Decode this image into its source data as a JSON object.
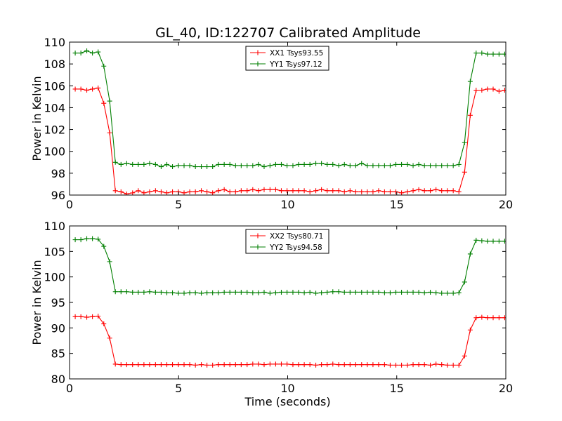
{
  "title": "GL_40, ID:122707 Calibrated Amplitude",
  "chart_data": [
    {
      "type": "line",
      "ylabel": "Power in Kelvin",
      "xlabel": "",
      "xlim": [
        0,
        20
      ],
      "ylim": [
        96,
        110
      ],
      "xticks": [
        0,
        5,
        10,
        15,
        20
      ],
      "yticks": [
        96,
        98,
        100,
        102,
        104,
        106,
        108,
        110
      ],
      "legend_position": "top-center",
      "x": [
        0.26,
        0.52,
        0.79,
        1.05,
        1.31,
        1.57,
        1.84,
        2.1,
        2.36,
        2.62,
        2.89,
        3.15,
        3.41,
        3.67,
        3.94,
        4.2,
        4.46,
        4.72,
        4.99,
        5.25,
        5.51,
        5.77,
        6.04,
        6.3,
        6.56,
        6.82,
        7.09,
        7.35,
        7.61,
        7.87,
        8.14,
        8.4,
        8.66,
        8.92,
        9.19,
        9.45,
        9.71,
        9.97,
        10.24,
        10.5,
        10.76,
        11.02,
        11.29,
        11.55,
        11.81,
        12.07,
        12.34,
        12.6,
        12.86,
        13.12,
        13.39,
        13.65,
        13.91,
        14.17,
        14.44,
        14.7,
        14.96,
        15.22,
        15.49,
        15.75,
        16.01,
        16.27,
        16.54,
        16.8,
        17.06,
        17.32,
        17.59,
        17.85,
        18.11,
        18.37,
        18.64,
        18.9,
        19.16,
        19.42,
        19.69,
        19.95
      ],
      "series": [
        {
          "name": "XX1 Tsys93.55",
          "color": "#ff0000",
          "values": [
            105.7,
            105.7,
            105.6,
            105.7,
            105.8,
            104.4,
            101.7,
            96.4,
            96.3,
            96.1,
            96.2,
            96.4,
            96.2,
            96.3,
            96.4,
            96.3,
            96.2,
            96.3,
            96.3,
            96.2,
            96.3,
            96.3,
            96.4,
            96.3,
            96.2,
            96.4,
            96.5,
            96.3,
            96.3,
            96.4,
            96.4,
            96.5,
            96.4,
            96.5,
            96.5,
            96.5,
            96.4,
            96.4,
            96.4,
            96.4,
            96.4,
            96.3,
            96.4,
            96.5,
            96.4,
            96.4,
            96.4,
            96.3,
            96.4,
            96.3,
            96.3,
            96.3,
            96.3,
            96.4,
            96.3,
            96.3,
            96.3,
            96.2,
            96.3,
            96.4,
            96.5,
            96.4,
            96.4,
            96.5,
            96.4,
            96.4,
            96.4,
            96.3,
            98.1,
            103.3,
            105.6,
            105.6,
            105.7,
            105.7,
            105.5,
            105.6
          ]
        },
        {
          "name": "YY1 Tsys97.12",
          "color": "#007f00",
          "values": [
            109,
            109,
            109.2,
            109,
            109.1,
            107.8,
            104.6,
            99,
            98.8,
            98.9,
            98.8,
            98.8,
            98.8,
            98.9,
            98.8,
            98.6,
            98.8,
            98.6,
            98.7,
            98.7,
            98.7,
            98.6,
            98.6,
            98.6,
            98.6,
            98.8,
            98.8,
            98.8,
            98.7,
            98.7,
            98.7,
            98.7,
            98.8,
            98.6,
            98.7,
            98.8,
            98.8,
            98.7,
            98.7,
            98.8,
            98.8,
            98.8,
            98.9,
            98.9,
            98.8,
            98.8,
            98.7,
            98.8,
            98.7,
            98.7,
            98.9,
            98.7,
            98.7,
            98.7,
            98.7,
            98.7,
            98.8,
            98.8,
            98.8,
            98.7,
            98.8,
            98.7,
            98.7,
            98.7,
            98.7,
            98.7,
            98.7,
            98.8,
            100.8,
            106.4,
            109,
            109,
            108.9,
            108.9,
            108.9,
            108.9
          ]
        }
      ]
    },
    {
      "type": "line",
      "ylabel": "Power in Kelvin",
      "xlabel": "Time (seconds)",
      "xlim": [
        0,
        20
      ],
      "ylim": [
        80,
        110
      ],
      "xticks": [
        0,
        5,
        10,
        15,
        20
      ],
      "yticks": [
        80,
        85,
        90,
        95,
        100,
        105,
        110
      ],
      "legend_position": "top-center",
      "x": [
        0.26,
        0.52,
        0.79,
        1.05,
        1.31,
        1.57,
        1.84,
        2.1,
        2.36,
        2.62,
        2.89,
        3.15,
        3.41,
        3.67,
        3.94,
        4.2,
        4.46,
        4.72,
        4.99,
        5.25,
        5.51,
        5.77,
        6.04,
        6.3,
        6.56,
        6.82,
        7.09,
        7.35,
        7.61,
        7.87,
        8.14,
        8.4,
        8.66,
        8.92,
        9.19,
        9.45,
        9.71,
        9.97,
        10.24,
        10.5,
        10.76,
        11.02,
        11.29,
        11.55,
        11.81,
        12.07,
        12.34,
        12.6,
        12.86,
        13.12,
        13.39,
        13.65,
        13.91,
        14.17,
        14.44,
        14.7,
        14.96,
        15.22,
        15.49,
        15.75,
        16.01,
        16.27,
        16.54,
        16.8,
        17.06,
        17.32,
        17.59,
        17.85,
        18.11,
        18.37,
        18.64,
        18.9,
        19.16,
        19.42,
        19.69,
        19.95
      ],
      "series": [
        {
          "name": "XX2 Tsys80.71",
          "color": "#ff0000",
          "values": [
            92.2,
            92.2,
            92.1,
            92.2,
            92.3,
            90.8,
            88,
            82.9,
            82.8,
            82.8,
            82.8,
            82.8,
            82.8,
            82.8,
            82.8,
            82.8,
            82.8,
            82.8,
            82.8,
            82.8,
            82.8,
            82.7,
            82.8,
            82.7,
            82.7,
            82.8,
            82.8,
            82.8,
            82.8,
            82.8,
            82.8,
            82.9,
            82.9,
            82.8,
            82.9,
            82.9,
            82.9,
            82.9,
            82.8,
            82.8,
            82.8,
            82.8,
            82.7,
            82.8,
            82.8,
            82.9,
            82.8,
            82.8,
            82.8,
            82.8,
            82.8,
            82.8,
            82.8,
            82.8,
            82.8,
            82.7,
            82.7,
            82.7,
            82.7,
            82.8,
            82.8,
            82.8,
            82.7,
            82.9,
            82.8,
            82.7,
            82.7,
            82.7,
            84.5,
            89.6,
            92,
            92.1,
            92,
            92,
            92,
            92
          ]
        },
        {
          "name": "YY2 Tsys94.58",
          "color": "#007f00",
          "values": [
            107.3,
            107.3,
            107.5,
            107.5,
            107.4,
            106,
            103,
            97.1,
            97.1,
            97.1,
            97,
            97,
            97,
            97.1,
            97,
            97,
            96.9,
            96.9,
            96.8,
            96.8,
            96.9,
            96.9,
            96.8,
            96.9,
            96.9,
            96.9,
            97,
            97,
            97,
            97,
            97,
            96.9,
            96.9,
            97,
            96.8,
            96.9,
            97,
            97,
            97,
            97,
            96.9,
            97,
            96.8,
            96.9,
            97,
            97.1,
            97.1,
            97,
            97,
            97,
            97,
            97,
            97,
            97,
            96.9,
            96.9,
            97,
            97,
            97,
            97,
            97,
            96.9,
            97,
            96.9,
            96.8,
            96.8,
            96.8,
            96.9,
            99,
            104.5,
            107.2,
            107.1,
            107,
            107,
            107,
            107
          ]
        }
      ]
    }
  ]
}
